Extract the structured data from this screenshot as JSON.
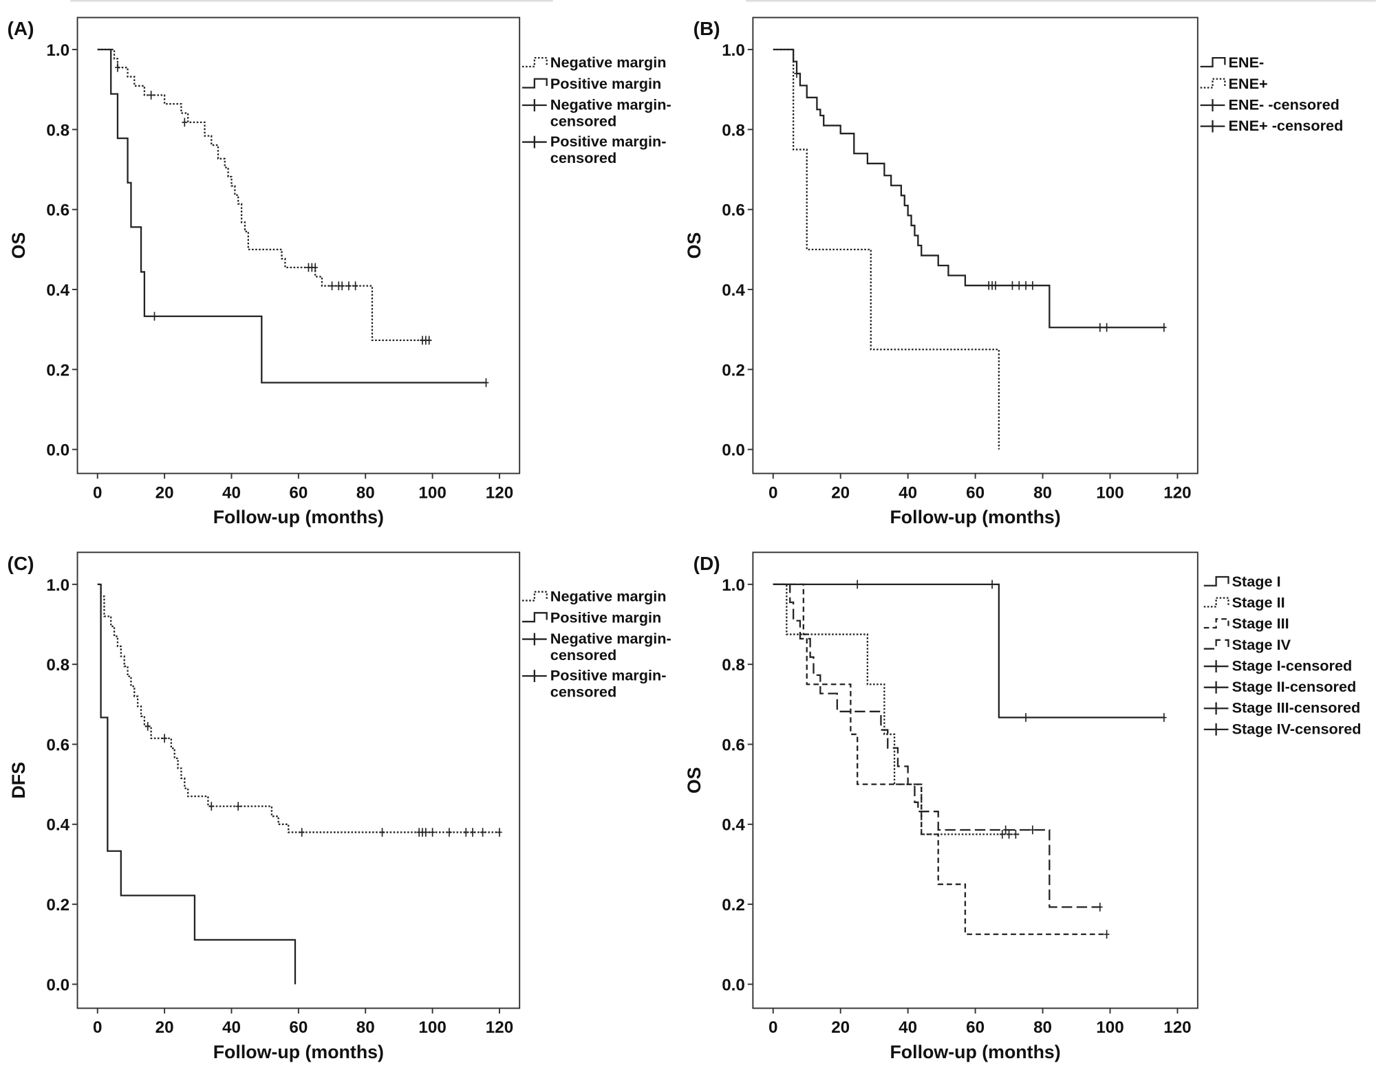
{
  "chart_data": [
    {
      "type": "step",
      "label": "(A)",
      "xlabel": "Follow-up (months)",
      "ylabel": "OS",
      "xlim": [
        -6,
        126
      ],
      "ylim": [
        -0.06,
        1.08
      ],
      "xticks": [
        0,
        20,
        40,
        60,
        80,
        100,
        120
      ],
      "yticks": [
        {
          "value": 0,
          "label": "0.0"
        },
        0.2,
        0.4,
        0.6,
        0.8,
        {
          "value": 1,
          "label": "1.0"
        }
      ],
      "series": [
        {
          "name": "Negative margin",
          "color": "#222222",
          "dash": "dotted",
          "x": [
            0,
            5,
            6,
            9,
            11,
            14,
            20,
            25,
            27,
            32,
            34,
            36,
            38,
            39,
            40,
            41,
            42,
            43,
            44,
            45,
            55,
            56,
            65,
            67,
            82,
            99
          ],
          "values": [
            1,
            0.977,
            0.955,
            0.932,
            0.909,
            0.886,
            0.864,
            0.841,
            0.818,
            0.784,
            0.761,
            0.727,
            0.705,
            0.682,
            0.659,
            0.636,
            0.614,
            0.568,
            0.545,
            0.5,
            0.477,
            0.455,
            0.432,
            0.409,
            0.273,
            0.273
          ]
        },
        {
          "name": "Positive margin",
          "color": "#222222",
          "dash": "solid",
          "x": [
            0,
            4,
            6,
            9,
            10,
            13,
            14,
            49,
            116
          ],
          "values": [
            1,
            0.889,
            0.778,
            0.667,
            0.556,
            0.444,
            0.333,
            0.167,
            0.167
          ]
        },
        {
          "name": "Negative margin-censored",
          "color": "#222222",
          "marker": "censor",
          "x": [
            6,
            16,
            26,
            63,
            64,
            65,
            70,
            72,
            73,
            75,
            77,
            97,
            98,
            99
          ],
          "values": [
            0.955,
            0.886,
            0.818,
            0.455,
            0.455,
            0.455,
            0.409,
            0.409,
            0.409,
            0.409,
            0.409,
            0.273,
            0.273,
            0.273
          ]
        },
        {
          "name": "Positive margin-censored",
          "color": "#222222",
          "marker": "censor",
          "x": [
            17,
            116
          ],
          "values": [
            0.333,
            0.167
          ]
        }
      ]
    },
    {
      "type": "step",
      "label": "(B)",
      "xlabel": "Follow-up (months)",
      "ylabel": "OS",
      "xlim": [
        -6,
        126
      ],
      "ylim": [
        -0.06,
        1.08
      ],
      "xticks": [
        0,
        20,
        40,
        60,
        80,
        100,
        120
      ],
      "yticks": [
        {
          "value": 0,
          "label": "0.0"
        },
        0.2,
        0.4,
        0.6,
        0.8,
        {
          "value": 1,
          "label": "1.0"
        }
      ],
      "series": [
        {
          "name": "ENE-",
          "color": "#222222",
          "dash": "solid",
          "x": [
            0,
            6,
            7,
            8,
            10,
            13,
            14,
            15,
            20,
            24,
            28,
            33,
            35,
            38,
            39,
            40,
            41,
            42,
            43,
            44,
            49,
            52,
            57,
            82,
            116
          ],
          "values": [
            1,
            0.97,
            0.94,
            0.91,
            0.88,
            0.85,
            0.835,
            0.81,
            0.79,
            0.74,
            0.715,
            0.685,
            0.66,
            0.635,
            0.61,
            0.585,
            0.56,
            0.535,
            0.51,
            0.485,
            0.46,
            0.435,
            0.41,
            0.305,
            0.305
          ]
        },
        {
          "name": "ENE+",
          "color": "#222222",
          "dash": "dotted",
          "x": [
            0,
            6,
            10,
            29,
            67
          ],
          "values": [
            1,
            0.75,
            0.5,
            0.25,
            0
          ]
        },
        {
          "name": "ENE- -censored",
          "color": "#222222",
          "marker": "censor",
          "x": [
            7,
            64,
            65,
            66,
            71,
            73,
            75,
            77,
            97,
            99,
            116
          ],
          "values": [
            0.94,
            0.41,
            0.41,
            0.41,
            0.41,
            0.41,
            0.41,
            0.41,
            0.305,
            0.305,
            0.305
          ]
        },
        {
          "name": "ENE+ -censored",
          "color": "#222222",
          "marker": "censor",
          "x": [],
          "values": []
        }
      ]
    },
    {
      "type": "step",
      "label": "(C)",
      "xlabel": "Follow-up (months)",
      "ylabel": "DFS",
      "xlim": [
        -6,
        126
      ],
      "ylim": [
        -0.06,
        1.08
      ],
      "xticks": [
        0,
        20,
        40,
        60,
        80,
        100,
        120
      ],
      "yticks": [
        {
          "value": 0,
          "label": "0.0"
        },
        0.2,
        0.4,
        0.6,
        0.8,
        {
          "value": 1,
          "label": "1.0"
        }
      ],
      "series": [
        {
          "name": "Negative margin",
          "color": "#222222",
          "dash": "dotted",
          "x": [
            0,
            1,
            2,
            4,
            5,
            6,
            7,
            8,
            9,
            10,
            11,
            12,
            13,
            14,
            16,
            22,
            23,
            24,
            25,
            26,
            27,
            33,
            52,
            54,
            57,
            120
          ],
          "values": [
            1,
            0.97,
            0.92,
            0.895,
            0.87,
            0.845,
            0.82,
            0.795,
            0.77,
            0.745,
            0.72,
            0.695,
            0.67,
            0.645,
            0.615,
            0.59,
            0.565,
            0.54,
            0.515,
            0.49,
            0.47,
            0.445,
            0.42,
            0.4,
            0.38,
            0.38
          ]
        },
        {
          "name": "Positive margin",
          "color": "#222222",
          "dash": "solid",
          "x": [
            0,
            1,
            3,
            7,
            29,
            59
          ],
          "values": [
            1,
            0.667,
            0.333,
            0.222,
            0.111,
            0
          ]
        },
        {
          "name": "Negative margin-censored",
          "color": "#222222",
          "marker": "censor",
          "x": [
            15,
            20,
            34,
            42,
            61,
            85,
            96,
            97,
            98,
            100,
            105,
            110,
            112,
            115,
            120
          ],
          "values": [
            0.645,
            0.615,
            0.445,
            0.445,
            0.38,
            0.38,
            0.38,
            0.38,
            0.38,
            0.38,
            0.38,
            0.38,
            0.38,
            0.38,
            0.38
          ]
        },
        {
          "name": "Positive margin-censored",
          "color": "#222222",
          "marker": "censor",
          "x": [],
          "values": []
        }
      ]
    },
    {
      "type": "step",
      "label": "(D)",
      "xlabel": "Follow-up (months)",
      "ylabel": "OS",
      "xlim": [
        -6,
        126
      ],
      "ylim": [
        -0.06,
        1.08
      ],
      "xticks": [
        0,
        20,
        40,
        60,
        80,
        100,
        120
      ],
      "yticks": [
        {
          "value": 0,
          "label": "0.0"
        },
        0.2,
        0.4,
        0.6,
        0.8,
        {
          "value": 1,
          "label": "1.0"
        }
      ],
      "series": [
        {
          "name": "Stage I",
          "color": "#222222",
          "dash": "solid",
          "x": [
            0,
            67,
            116
          ],
          "values": [
            1,
            0.667,
            0.667
          ]
        },
        {
          "name": "Stage II",
          "color": "#222222",
          "dash": "dotted",
          "x": [
            0,
            4,
            28,
            33,
            36,
            44,
            73
          ],
          "values": [
            1,
            0.875,
            0.75,
            0.625,
            0.5,
            0.375,
            0.375
          ]
        },
        {
          "name": "Stage III",
          "color": "#222222",
          "dash": "dashed",
          "x": [
            0,
            9,
            10,
            23,
            25,
            44,
            49,
            57,
            99
          ],
          "values": [
            1,
            0.875,
            0.75,
            0.625,
            0.5,
            0.375,
            0.25,
            0.125,
            0.125
          ]
        },
        {
          "name": "Stage IV",
          "color": "#222222",
          "dash": "longdash",
          "x": [
            0,
            5,
            6,
            8,
            11,
            12,
            14,
            19,
            32,
            34,
            37,
            40,
            42,
            43,
            49,
            82,
            97
          ],
          "values": [
            1,
            0.955,
            0.909,
            0.864,
            0.818,
            0.773,
            0.727,
            0.682,
            0.636,
            0.591,
            0.545,
            0.5,
            0.455,
            0.432,
            0.386,
            0.193,
            0.193
          ]
        },
        {
          "name": "Stage I-censored",
          "color": "#222222",
          "marker": "censor",
          "x": [
            25,
            65,
            75,
            116
          ],
          "values": [
            1,
            1,
            0.667,
            0.667
          ]
        },
        {
          "name": "Stage II-censored",
          "color": "#222222",
          "marker": "censor",
          "x": [
            68,
            70,
            72
          ],
          "values": [
            0.375,
            0.375,
            0.375
          ]
        },
        {
          "name": "Stage III-censored",
          "color": "#222222",
          "marker": "censor",
          "x": [
            99
          ],
          "values": [
            0.125
          ]
        },
        {
          "name": "Stage IV-censored",
          "color": "#222222",
          "marker": "censor",
          "x": [
            69,
            77,
            97
          ],
          "values": [
            0.386,
            0.386,
            0.193
          ]
        }
      ]
    }
  ]
}
